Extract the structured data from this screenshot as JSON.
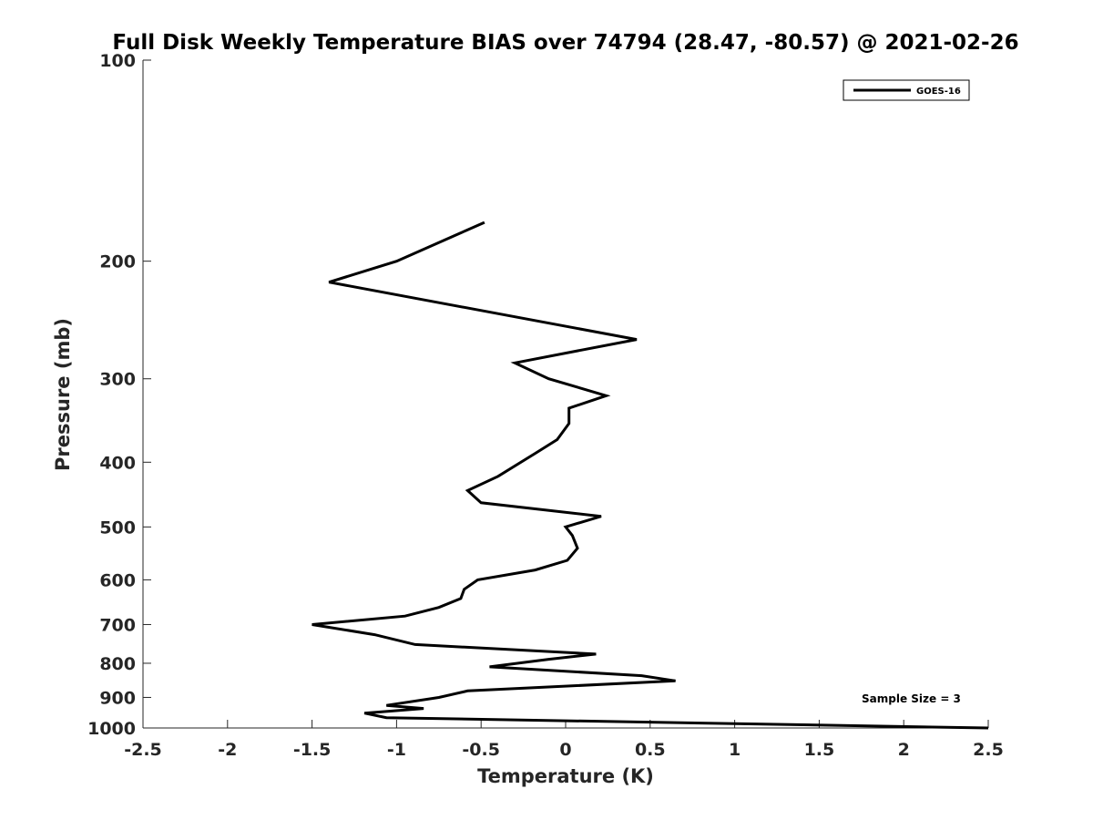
{
  "chart_data": {
    "type": "line",
    "title": "Full Disk Weekly Temperature BIAS over 74794 (28.47, -80.57) @ 2021-02-26",
    "xlabel": "Temperature (K)",
    "ylabel": "Pressure (mb)",
    "xlim": [
      -2.5,
      2.5
    ],
    "ylim": [
      100,
      1000
    ],
    "y_scale": "log",
    "y_reversed": true,
    "x_ticks": [
      "-2.5",
      "-2",
      "-1.5",
      "-1",
      "-0.5",
      "0",
      "0.5",
      "1",
      "1.5",
      "2",
      "2.5"
    ],
    "x_tick_values": [
      -2.5,
      -2,
      -1.5,
      -1,
      -0.5,
      0,
      0.5,
      1,
      1.5,
      2,
      2.5
    ],
    "y_ticks": [
      "100",
      "200",
      "300",
      "400",
      "500",
      "600",
      "700",
      "800",
      "900",
      "1000"
    ],
    "y_tick_values": [
      100,
      200,
      300,
      400,
      500,
      600,
      700,
      800,
      900,
      1000
    ],
    "grid": false,
    "legend_position": "top-right",
    "annotation": "Sample Size = 3",
    "series": [
      {
        "name": "GOES-16",
        "color": "#000000",
        "points": [
          [
            -0.48,
            175
          ],
          [
            -1.0,
            200
          ],
          [
            -1.4,
            215
          ],
          [
            0.42,
            262
          ],
          [
            -0.3,
            284
          ],
          [
            -0.1,
            300
          ],
          [
            0.24,
            318
          ],
          [
            0.02,
            332
          ],
          [
            0.02,
            350
          ],
          [
            -0.05,
            370
          ],
          [
            -0.18,
            388
          ],
          [
            -0.4,
            420
          ],
          [
            -0.58,
            441
          ],
          [
            -0.5,
            460
          ],
          [
            0.21,
            482
          ],
          [
            0.0,
            500
          ],
          [
            0.04,
            515
          ],
          [
            0.07,
            538
          ],
          [
            0.01,
            561
          ],
          [
            -0.18,
            580
          ],
          [
            -0.52,
            600
          ],
          [
            -0.6,
            620
          ],
          [
            -0.62,
            640
          ],
          [
            -0.75,
            660
          ],
          [
            -0.95,
            680
          ],
          [
            -1.5,
            700
          ],
          [
            -1.13,
            725
          ],
          [
            -0.89,
            750
          ],
          [
            0.18,
            775
          ],
          [
            -0.1,
            789
          ],
          [
            -0.45,
            810
          ],
          [
            0.45,
            835
          ],
          [
            0.65,
            850
          ],
          [
            -0.58,
            880
          ],
          [
            -0.75,
            900
          ],
          [
            -1.06,
            925
          ],
          [
            -0.84,
            935
          ],
          [
            -1.19,
            950
          ],
          [
            -1.06,
            965
          ],
          [
            2.5,
            1000
          ]
        ]
      }
    ]
  }
}
